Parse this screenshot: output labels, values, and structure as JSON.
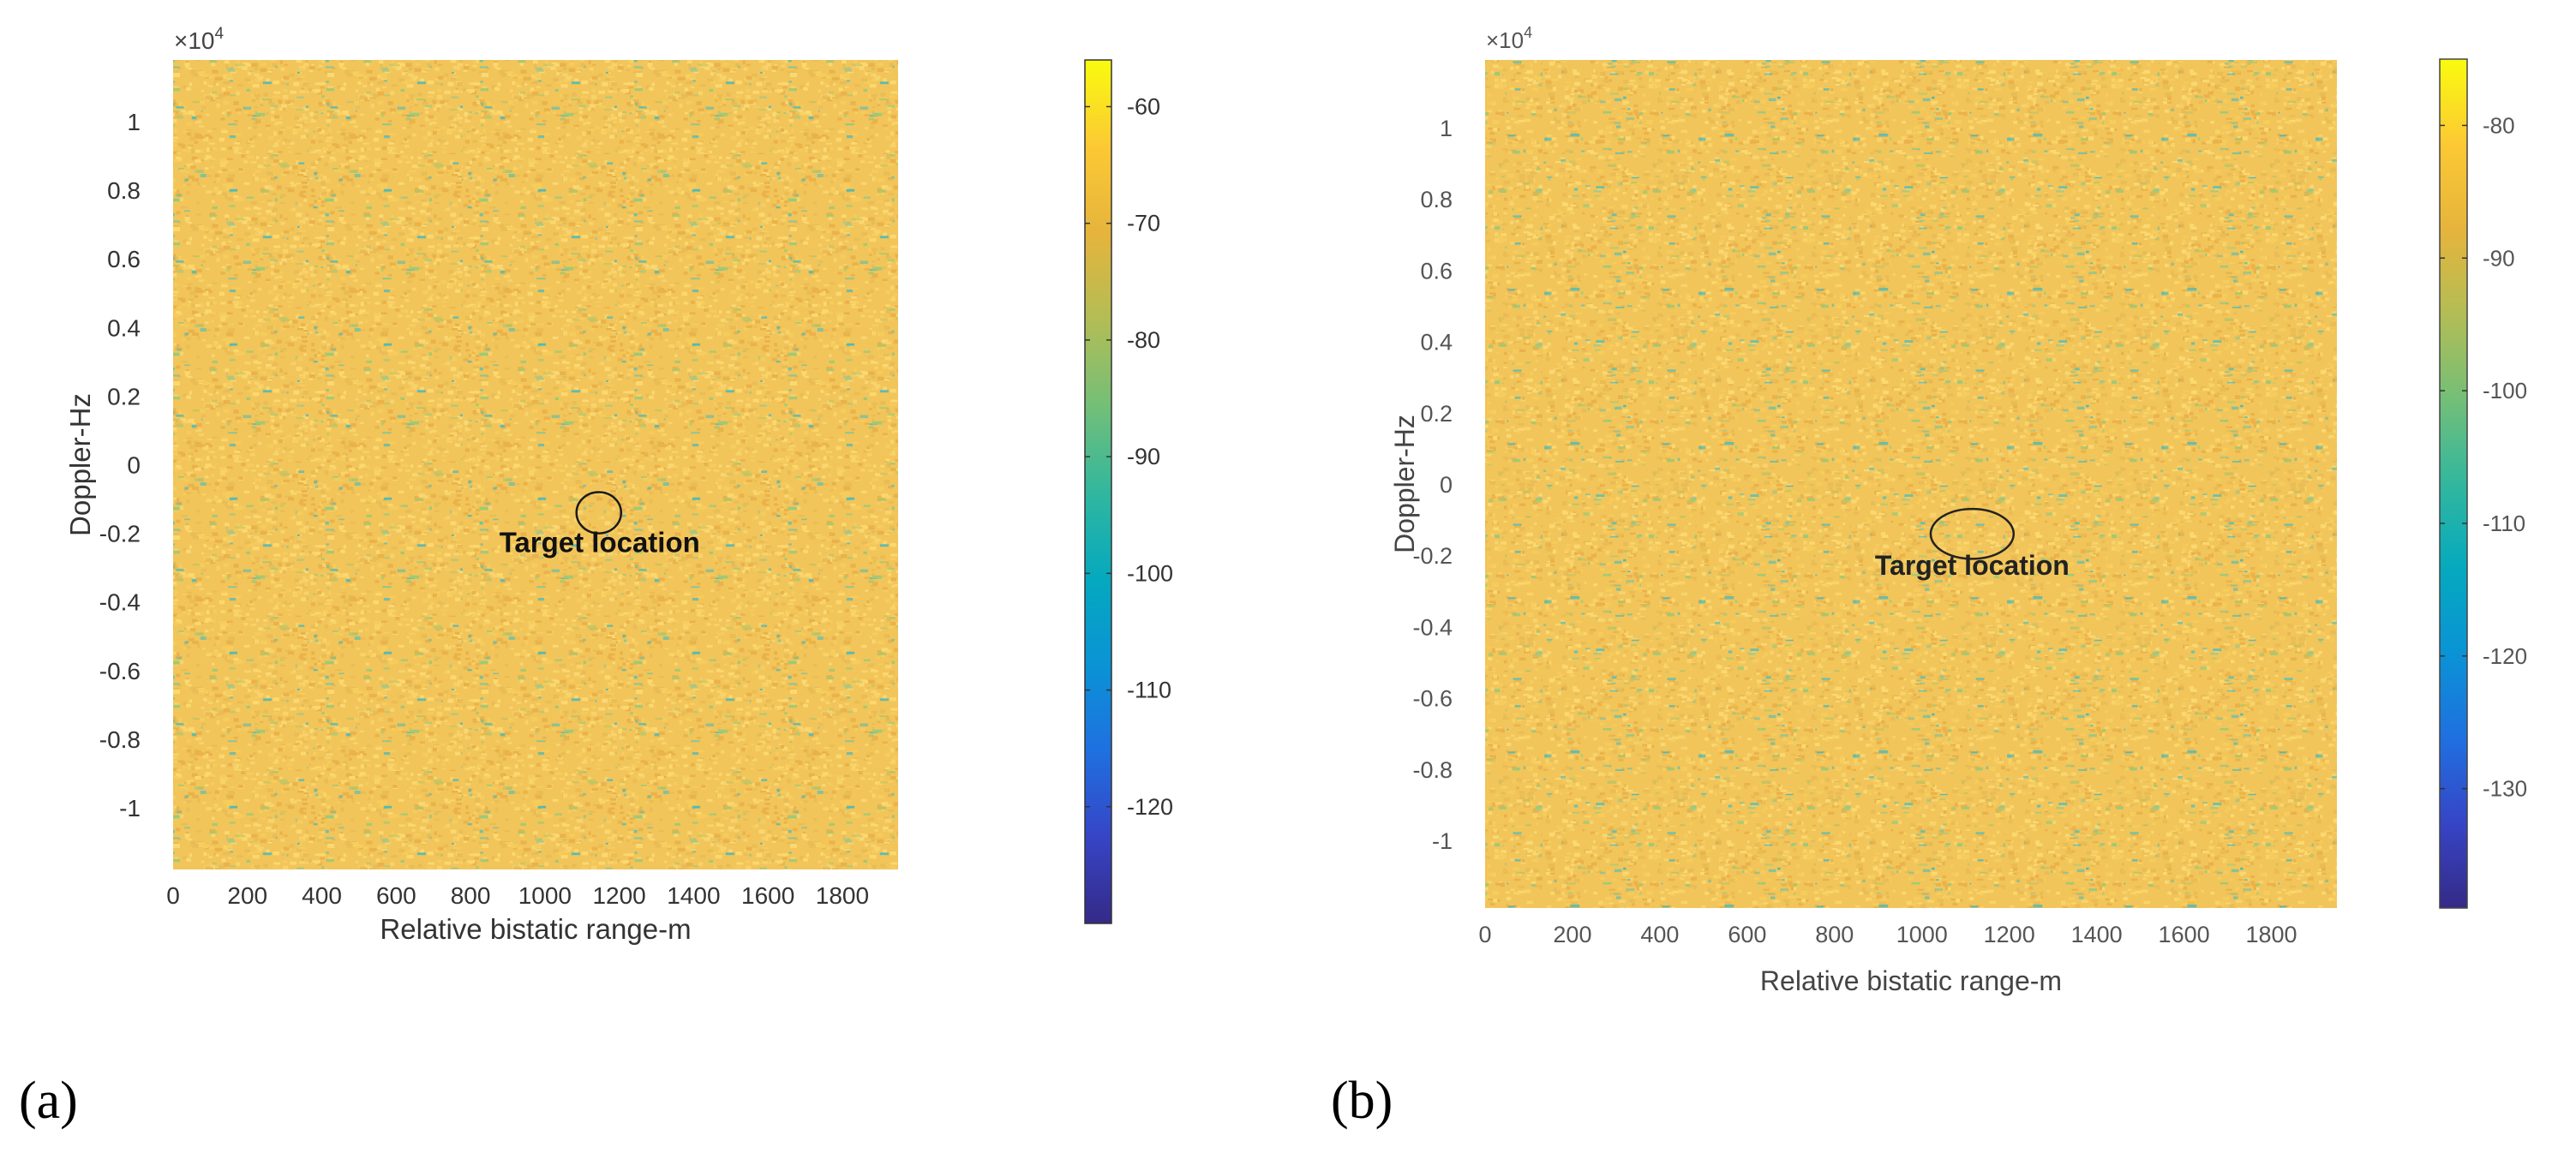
{
  "chart_data": [
    {
      "panel_label": "(a)",
      "type": "heatmap",
      "xlabel": "Relative bistatic range-m",
      "ylabel": "Doppler-Hz",
      "y_exponent_label": "×10",
      "y_exponent_power": "4",
      "xlim": [
        0,
        1950
      ],
      "ylim": [
        -1.18,
        1.18
      ],
      "x_ticks": [
        0,
        200,
        400,
        600,
        800,
        1000,
        1200,
        1400,
        1600,
        1800
      ],
      "x_tick_labels": [
        "0",
        "200",
        "400",
        "600",
        "800",
        "1000",
        "1200",
        "1400",
        "1600",
        "1800"
      ],
      "y_ticks": [
        1,
        0.8,
        0.6,
        0.4,
        0.2,
        0,
        -0.2,
        -0.4,
        -0.6,
        -0.8,
        -1
      ],
      "y_tick_labels": [
        "1",
        "0.8",
        "0.6",
        "0.4",
        "0.2",
        "0",
        "-0.2",
        "-0.4",
        "-0.6",
        "-0.8",
        "-1"
      ],
      "colorbar": {
        "range": [
          -130,
          -56
        ],
        "ticks": [
          -60,
          -70,
          -80,
          -90,
          -100,
          -110,
          -120
        ],
        "tick_labels": [
          "-60",
          "-70",
          "-80",
          "-90",
          "-100",
          "-110",
          "-120"
        ],
        "colormap": "parula"
      },
      "annotation": {
        "text": "Target location",
        "x": 1145,
        "y": -0.14,
        "rx": 60,
        "ry": 0.06
      },
      "seed": 17
    },
    {
      "panel_label": "(b)",
      "type": "heatmap",
      "xlabel": "Relative bistatic range-m",
      "ylabel": "Doppler-Hz",
      "y_exponent_label": "×10",
      "y_exponent_power": "4",
      "xlim": [
        0,
        1950
      ],
      "ylim": [
        -1.19,
        1.19
      ],
      "x_ticks": [
        0,
        200,
        400,
        600,
        800,
        1000,
        1200,
        1400,
        1600,
        1800
      ],
      "x_tick_labels": [
        "0",
        "200",
        "400",
        "600",
        "800",
        "1000",
        "1200",
        "1400",
        "1600",
        "1800"
      ],
      "y_ticks": [
        1,
        0.8,
        0.6,
        0.4,
        0.2,
        0,
        -0.2,
        -0.4,
        -0.6,
        -0.8,
        -1
      ],
      "y_tick_labels": [
        "1",
        "0.8",
        "0.6",
        "0.4",
        "0.2",
        "0",
        "-0.2",
        "-0.4",
        "-0.6",
        "-0.8",
        "-1"
      ],
      "colorbar": {
        "range": [
          -139,
          -75
        ],
        "ticks": [
          -80,
          -90,
          -100,
          -110,
          -120,
          -130
        ],
        "tick_labels": [
          "-80",
          "-90",
          "-100",
          "-110",
          "-120",
          "-130"
        ],
        "colormap": "parula"
      },
      "annotation": {
        "text": "Target location",
        "x": 1115,
        "y": -0.14,
        "rx": 95,
        "ry": 0.07
      },
      "seed": 91
    }
  ],
  "colors": {
    "parula": [
      "#352a87",
      "#3645c6",
      "#1f70e0",
      "#0a93d5",
      "#05a9be",
      "#32b79e",
      "#74bf77",
      "#b3bd55",
      "#e6b43c",
      "#fcc934",
      "#f9fb0e"
    ]
  }
}
